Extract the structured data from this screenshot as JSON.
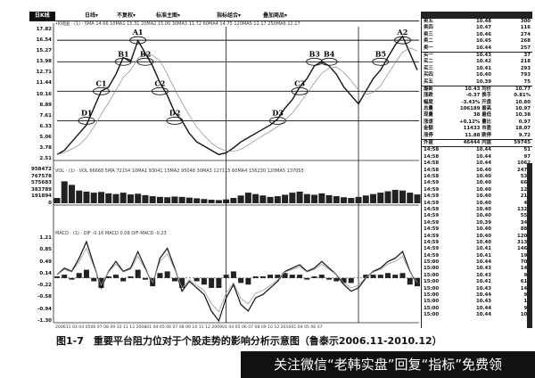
{
  "toolbar": {
    "tag": "日K线",
    "menus": [
      "日线▾",
      "不复权▾",
      "标准主图▾",
      "指标组合▾",
      "叠加商品▾"
    ]
  },
  "indicators": {
    "price": "•K线图 · (1) · 5MA 14.66  10MA1 15.31  20MA2 15.00  30MA3 11.72  60MA4 14.75  120MA5 12.17  250MA6 12.17",
    "volume": "VOL · (1) · VOL 66668  5MA 72154  10MA1 93041  15MA2 95048  30MA3 127115  60MA4 156230  120MA5 137055",
    "macd": "MACD · (1) · DIF -0.16  MACD 0.08  DIF-MACD -0.23"
  },
  "chart_data": {
    "type": "line",
    "title": "",
    "x": [
      "2006-11",
      "2006-12",
      "2007-01",
      "2007-02",
      "2007-03",
      "2007-04",
      "2007-05",
      "2007-06",
      "2007-07",
      "2007-08",
      "2007-09",
      "2007-10",
      "2007-11",
      "2007-12",
      "2008-01",
      "2008-02",
      "2008-03",
      "2008-04",
      "2008-05",
      "2008-06",
      "2008-07",
      "2008-08",
      "2008-09",
      "2008-10",
      "2008-11",
      "2008-12",
      "2009-01",
      "2009-02",
      "2009-03",
      "2009-04",
      "2009-05",
      "2009-06",
      "2009-07",
      "2009-08",
      "2009-09",
      "2009-10",
      "2009-11",
      "2009-12",
      "2010-01",
      "2010-02",
      "2010-03",
      "2010-04",
      "2010-05",
      "2010-06",
      "2010-07",
      "2010-08",
      "2010-09",
      "2010-10",
      "2010-11",
      "2010-12"
    ],
    "price": [
      3.0,
      3.5,
      4.5,
      5.5,
      6.5,
      8.5,
      10.5,
      11.0,
      12.5,
      14.5,
      14.0,
      16.5,
      15.0,
      13.5,
      11.5,
      10.0,
      8.0,
      7.0,
      5.5,
      4.5,
      4.0,
      3.5,
      3.0,
      3.2,
      3.8,
      4.5,
      5.0,
      5.5,
      6.0,
      6.5,
      7.2,
      8.5,
      9.5,
      11.0,
      12.0,
      13.5,
      14.0,
      13.5,
      12.5,
      11.0,
      10.0,
      9.0,
      10.5,
      12.0,
      13.0,
      14.5,
      16.0,
      17.0,
      15.0,
      13.0
    ],
    "volume": [
      150000,
      620000,
      520000,
      360000,
      330000,
      300000,
      320000,
      280000,
      260000,
      300000,
      250000,
      270000,
      230000,
      200000,
      180000,
      170000,
      190000,
      180000,
      160000,
      140000,
      120000,
      100000,
      90000,
      110000,
      150000,
      220000,
      300000,
      260000,
      220000,
      180000,
      200000,
      240000,
      300000,
      330000,
      260000,
      240000,
      280000,
      230000,
      200000,
      170000,
      150000,
      180000,
      220000,
      260000,
      300000,
      340000,
      380000,
      360000,
      300000,
      250000
    ],
    "macd_dif": [
      0.1,
      0.3,
      0.2,
      0.6,
      1.1,
      0.4,
      -0.3,
      0.2,
      0.5,
      0.2,
      0.3,
      0.8,
      0.3,
      -0.2,
      0.6,
      0.9,
      0.3,
      -0.4,
      -0.1,
      -0.3,
      -0.5,
      -1.0,
      -1.3,
      -0.6,
      -0.2,
      -0.8,
      -1.0,
      -0.6,
      -0.5,
      -0.3,
      -0.1,
      0.2,
      0.3,
      0.4,
      0.2,
      0.3,
      0.5,
      0.3,
      0.1,
      -0.2,
      -0.4,
      -0.3,
      0.0,
      0.2,
      0.3,
      0.5,
      0.6,
      0.8,
      0.2,
      -0.2
    ],
    "macd_hist": [
      0.05,
      0.1,
      -0.05,
      0.15,
      0.25,
      -0.1,
      -0.3,
      0.05,
      0.1,
      -0.1,
      0.05,
      0.25,
      -0.05,
      -0.25,
      0.15,
      0.2,
      -0.1,
      -0.3,
      0.0,
      -0.1,
      -0.2,
      -0.3,
      -0.3,
      0.1,
      0.2,
      -0.15,
      -0.2,
      0.05,
      0.05,
      0.1,
      0.1,
      0.15,
      0.1,
      0.1,
      -0.05,
      0.05,
      0.1,
      -0.05,
      -0.1,
      -0.15,
      -0.15,
      0.0,
      0.1,
      0.1,
      0.1,
      0.15,
      0.1,
      0.15,
      -0.2,
      -0.25
    ],
    "price_ticks": [
      "17.82",
      "16.54",
      "15.27",
      "13.98",
      "12.71",
      "11.44",
      "10.16",
      "8.89",
      "7.61",
      "6.33",
      "5.06",
      "3.78",
      "2.51"
    ],
    "volume_ticks": [
      "958472",
      "767578",
      "575683",
      "383789",
      "191894",
      "0"
    ],
    "macd_ticks": [
      "1.21",
      "0.85",
      "0.49",
      "0.14",
      "-0.22",
      "-0.58",
      "-0.94",
      "-1.30"
    ],
    "ylim_price": [
      2.51,
      17.82
    ],
    "ylim_volume": [
      0,
      958472
    ],
    "ylim_macd": [
      -1.3,
      1.21
    ],
    "date_axis": "200611  03 04 0506 07 08 09 10 11 12 200801  04 05 06 07 08 09 10 11 12 200901  04 05 06 07 08 09 10   12 201001  04 05 06 07",
    "resistance_levels": [
      16.54,
      13.99,
      10.5,
      7.0
    ],
    "annotations": [
      {
        "label": "A1",
        "date": "2007-10",
        "price": 16.54
      },
      {
        "label": "B1",
        "date": "2007-08",
        "price": 13.99
      },
      {
        "label": "B2",
        "date": "2007-11",
        "price": 13.99
      },
      {
        "label": "C1",
        "date": "2007-05",
        "price": 10.5
      },
      {
        "label": "C2",
        "date": "2008-01",
        "price": 10.5
      },
      {
        "label": "D1",
        "date": "2007-03",
        "price": 7.0
      },
      {
        "label": "D2",
        "date": "2008-03",
        "price": 7.0
      },
      {
        "label": "D3",
        "date": "2009-05",
        "price": 7.0
      },
      {
        "label": "C3",
        "date": "2009-08",
        "price": 10.5
      },
      {
        "label": "B3",
        "date": "2009-10",
        "price": 13.99
      },
      {
        "label": "B4",
        "date": "2009-12",
        "price": 13.99
      },
      {
        "label": "B5",
        "date": "2010-07",
        "price": 13.99
      },
      {
        "label": "A2",
        "date": "2010-10",
        "price": 16.54
      }
    ],
    "markers": [
      "2008-10",
      "2010-04"
    ]
  },
  "quote": {
    "asks": [
      [
        "卖五",
        "10.48",
        "300"
      ],
      [
        "卖四",
        "10.47",
        "116"
      ],
      [
        "卖三",
        "10.46",
        "274"
      ],
      [
        "卖二",
        "10.45",
        "268"
      ],
      [
        "卖一",
        "10.44",
        "257"
      ]
    ],
    "bids": [
      [
        "买一",
        "10.43",
        "37"
      ],
      [
        "买二",
        "10.42",
        "218"
      ],
      [
        "买三",
        "10.41",
        "293"
      ],
      [
        "买四",
        "10.40",
        "793"
      ],
      [
        "买五",
        "10.39",
        "75"
      ]
    ],
    "stats": [
      [
        "最新",
        "10.43 均价",
        "10.77"
      ],
      [
        "涨跌",
        "-0.37 换手",
        "0.81%"
      ],
      [
        "幅度",
        "-3.43% 开盘",
        "10.80"
      ],
      [
        "总量",
        "106189 最高",
        "10.97"
      ],
      [
        "现量",
        "38 最低",
        "10.38"
      ],
      [
        "涨速",
        "+0.12% 量比",
        "0.97"
      ],
      [
        "金额",
        "11433 市盈",
        "18.07"
      ],
      [
        "涨停",
        "11.88 跌停",
        "9.72"
      ],
      [
        "外盘",
        "46444 内盘",
        "59745"
      ]
    ],
    "ticks": [
      [
        "14:58",
        "10.44",
        "51"
      ],
      [
        "14:58",
        "10.44",
        "97"
      ],
      [
        "14:58",
        "10.44",
        "1062"
      ],
      [
        "14:58",
        "10.40",
        "2474"
      ],
      [
        "14:58",
        "10.40",
        "537"
      ],
      [
        "14:59",
        "10.40",
        "667"
      ],
      [
        "14:59",
        "10.40",
        "128"
      ],
      [
        "14:59",
        "10.40",
        "215"
      ],
      [
        "14:59",
        "10.40",
        "49"
      ],
      [
        "14:59",
        "10.40",
        "1325"
      ],
      [
        "14:59",
        "10.40",
        "557"
      ],
      [
        "14:59",
        "10.39",
        "348"
      ],
      [
        "14:59",
        "10.40",
        "887"
      ],
      [
        "14:59",
        "10.40",
        "1208"
      ],
      [
        "14:59",
        "10.40",
        "3138"
      ],
      [
        "14:59",
        "10.41",
        "1468"
      ],
      [
        "14:59",
        "10.41",
        "198"
      ],
      [
        "15:00",
        "10.44",
        "707"
      ],
      [
        "15:00",
        "10.43",
        "147"
      ],
      [
        "15:00",
        "10.43",
        "97"
      ],
      [
        "15:00",
        "10.41",
        "618"
      ],
      [
        "15:00",
        "10.43",
        "147"
      ],
      [
        "15:00",
        "10.44",
        "97"
      ],
      [
        "15:00",
        "10.43",
        "16"
      ],
      [
        "15:00",
        "10.44",
        "97"
      ],
      [
        "15:00",
        "10.44",
        "107"
      ]
    ]
  },
  "caption": "图1-7　重要平台阻力位对于个股走势的影响分析示意图（鲁泰示2006.11-2010.12）",
  "watermark": "关注微信“老韩实盘”回复“指标”免费领"
}
